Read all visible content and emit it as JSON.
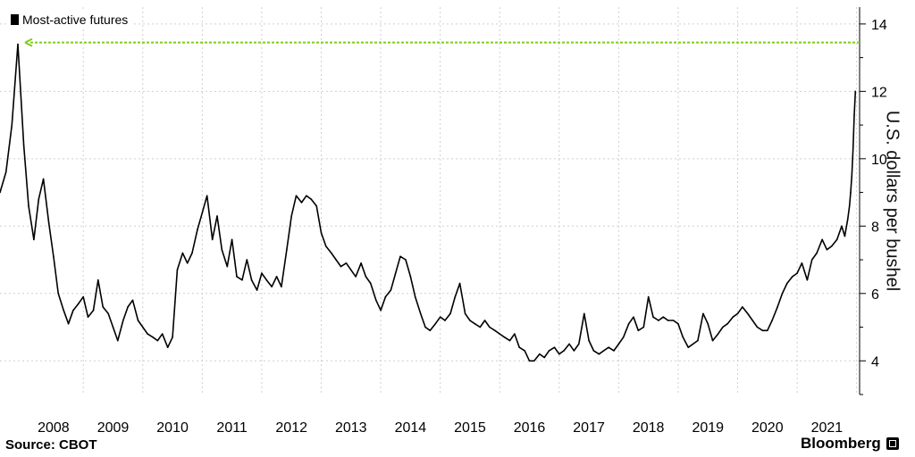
{
  "source": "Source: CBOT",
  "brand": "Bloomberg",
  "brand_icon": "bloomberg-terminal-icon",
  "colors": {
    "line": "#000000",
    "reference_line": "#7ccf12",
    "grid": "#cfcfcf",
    "axis": "#000000"
  },
  "chart_data": {
    "type": "line",
    "title": "",
    "xlabel": "",
    "ylabel": "U.S. dollars per bushel",
    "legend_position": "top-left",
    "ylim": [
      3,
      14.5
    ],
    "yticks": [
      4,
      6,
      8,
      10,
      12,
      14
    ],
    "xlim": [
      2007.6,
      2022.05
    ],
    "x_tick_labels": [
      "2008",
      "2009",
      "2010",
      "2011",
      "2012",
      "2013",
      "2014",
      "2015",
      "2016",
      "2017",
      "2018",
      "2019",
      "2020",
      "2021"
    ],
    "grid": true,
    "reference_line": {
      "y": 13.45,
      "style": "dashed",
      "arrow": "left"
    },
    "series": [
      {
        "name": "Most-active futures",
        "points": [
          [
            2007.6,
            9.0
          ],
          [
            2007.7,
            9.6
          ],
          [
            2007.8,
            11.0
          ],
          [
            2007.9,
            13.4
          ],
          [
            2008.0,
            10.4
          ],
          [
            2008.08,
            8.6
          ],
          [
            2008.17,
            7.6
          ],
          [
            2008.25,
            8.8
          ],
          [
            2008.33,
            9.4
          ],
          [
            2008.42,
            8.1
          ],
          [
            2008.5,
            7.1
          ],
          [
            2008.58,
            6.0
          ],
          [
            2008.67,
            5.5
          ],
          [
            2008.75,
            5.1
          ],
          [
            2008.83,
            5.5
          ],
          [
            2008.92,
            5.7
          ],
          [
            2009.0,
            5.9
          ],
          [
            2009.08,
            5.3
          ],
          [
            2009.17,
            5.5
          ],
          [
            2009.25,
            6.4
          ],
          [
            2009.33,
            5.6
          ],
          [
            2009.42,
            5.4
          ],
          [
            2009.5,
            5.0
          ],
          [
            2009.58,
            4.6
          ],
          [
            2009.67,
            5.2
          ],
          [
            2009.75,
            5.6
          ],
          [
            2009.83,
            5.8
          ],
          [
            2009.92,
            5.2
          ],
          [
            2010.0,
            5.0
          ],
          [
            2010.08,
            4.8
          ],
          [
            2010.17,
            4.7
          ],
          [
            2010.25,
            4.6
          ],
          [
            2010.33,
            4.8
          ],
          [
            2010.42,
            4.4
          ],
          [
            2010.5,
            4.7
          ],
          [
            2010.58,
            6.7
          ],
          [
            2010.67,
            7.2
          ],
          [
            2010.75,
            6.9
          ],
          [
            2010.83,
            7.2
          ],
          [
            2010.92,
            7.9
          ],
          [
            2011.0,
            8.4
          ],
          [
            2011.08,
            8.9
          ],
          [
            2011.17,
            7.6
          ],
          [
            2011.25,
            8.3
          ],
          [
            2011.33,
            7.3
          ],
          [
            2011.42,
            6.8
          ],
          [
            2011.5,
            7.6
          ],
          [
            2011.58,
            6.5
          ],
          [
            2011.67,
            6.4
          ],
          [
            2011.75,
            7.0
          ],
          [
            2011.83,
            6.4
          ],
          [
            2011.92,
            6.1
          ],
          [
            2012.0,
            6.6
          ],
          [
            2012.08,
            6.4
          ],
          [
            2012.17,
            6.2
          ],
          [
            2012.25,
            6.5
          ],
          [
            2012.33,
            6.2
          ],
          [
            2012.42,
            7.3
          ],
          [
            2012.5,
            8.3
          ],
          [
            2012.58,
            8.9
          ],
          [
            2012.67,
            8.7
          ],
          [
            2012.75,
            8.9
          ],
          [
            2012.83,
            8.8
          ],
          [
            2012.92,
            8.6
          ],
          [
            2013.0,
            7.8
          ],
          [
            2013.08,
            7.4
          ],
          [
            2013.17,
            7.2
          ],
          [
            2013.25,
            7.0
          ],
          [
            2013.33,
            6.8
          ],
          [
            2013.42,
            6.9
          ],
          [
            2013.5,
            6.7
          ],
          [
            2013.58,
            6.5
          ],
          [
            2013.67,
            6.9
          ],
          [
            2013.75,
            6.5
          ],
          [
            2013.83,
            6.3
          ],
          [
            2013.92,
            5.8
          ],
          [
            2014.0,
            5.5
          ],
          [
            2014.08,
            5.9
          ],
          [
            2014.17,
            6.1
          ],
          [
            2014.25,
            6.6
          ],
          [
            2014.33,
            7.1
          ],
          [
            2014.42,
            7.0
          ],
          [
            2014.5,
            6.5
          ],
          [
            2014.58,
            5.9
          ],
          [
            2014.67,
            5.4
          ],
          [
            2014.75,
            5.0
          ],
          [
            2014.83,
            4.9
          ],
          [
            2014.92,
            5.1
          ],
          [
            2015.0,
            5.3
          ],
          [
            2015.08,
            5.2
          ],
          [
            2015.17,
            5.4
          ],
          [
            2015.25,
            5.9
          ],
          [
            2015.33,
            6.3
          ],
          [
            2015.42,
            5.4
          ],
          [
            2015.5,
            5.2
          ],
          [
            2015.58,
            5.1
          ],
          [
            2015.67,
            5.0
          ],
          [
            2015.75,
            5.2
          ],
          [
            2015.83,
            5.0
          ],
          [
            2015.92,
            4.9
          ],
          [
            2016.0,
            4.8
          ],
          [
            2016.08,
            4.7
          ],
          [
            2016.17,
            4.6
          ],
          [
            2016.25,
            4.8
          ],
          [
            2016.33,
            4.4
          ],
          [
            2016.42,
            4.3
          ],
          [
            2016.5,
            4.0
          ],
          [
            2016.58,
            4.0
          ],
          [
            2016.67,
            4.2
          ],
          [
            2016.75,
            4.1
          ],
          [
            2016.83,
            4.3
          ],
          [
            2016.92,
            4.4
          ],
          [
            2017.0,
            4.2
          ],
          [
            2017.08,
            4.3
          ],
          [
            2017.17,
            4.5
          ],
          [
            2017.25,
            4.3
          ],
          [
            2017.33,
            4.5
          ],
          [
            2017.42,
            5.4
          ],
          [
            2017.5,
            4.6
          ],
          [
            2017.58,
            4.3
          ],
          [
            2017.67,
            4.2
          ],
          [
            2017.75,
            4.3
          ],
          [
            2017.83,
            4.4
          ],
          [
            2017.92,
            4.3
          ],
          [
            2018.0,
            4.5
          ],
          [
            2018.08,
            4.7
          ],
          [
            2018.17,
            5.1
          ],
          [
            2018.25,
            5.3
          ],
          [
            2018.33,
            4.9
          ],
          [
            2018.42,
            5.0
          ],
          [
            2018.5,
            5.9
          ],
          [
            2018.58,
            5.3
          ],
          [
            2018.67,
            5.2
          ],
          [
            2018.75,
            5.3
          ],
          [
            2018.83,
            5.2
          ],
          [
            2018.92,
            5.2
          ],
          [
            2019.0,
            5.1
          ],
          [
            2019.08,
            4.7
          ],
          [
            2019.17,
            4.4
          ],
          [
            2019.25,
            4.5
          ],
          [
            2019.33,
            4.6
          ],
          [
            2019.42,
            5.4
          ],
          [
            2019.5,
            5.1
          ],
          [
            2019.58,
            4.6
          ],
          [
            2019.67,
            4.8
          ],
          [
            2019.75,
            5.0
          ],
          [
            2019.83,
            5.1
          ],
          [
            2019.92,
            5.3
          ],
          [
            2020.0,
            5.4
          ],
          [
            2020.08,
            5.6
          ],
          [
            2020.17,
            5.4
          ],
          [
            2020.25,
            5.2
          ],
          [
            2020.33,
            5.0
          ],
          [
            2020.42,
            4.9
          ],
          [
            2020.5,
            4.9
          ],
          [
            2020.58,
            5.2
          ],
          [
            2020.67,
            5.6
          ],
          [
            2020.75,
            6.0
          ],
          [
            2020.83,
            6.3
          ],
          [
            2020.92,
            6.5
          ],
          [
            2021.0,
            6.6
          ],
          [
            2021.08,
            6.9
          ],
          [
            2021.17,
            6.4
          ],
          [
            2021.25,
            7.0
          ],
          [
            2021.33,
            7.2
          ],
          [
            2021.42,
            7.6
          ],
          [
            2021.5,
            7.3
          ],
          [
            2021.58,
            7.4
          ],
          [
            2021.67,
            7.6
          ],
          [
            2021.75,
            8.0
          ],
          [
            2021.8,
            7.7
          ],
          [
            2021.85,
            8.2
          ],
          [
            2021.88,
            8.6
          ],
          [
            2021.9,
            9.0
          ],
          [
            2021.92,
            9.5
          ],
          [
            2021.94,
            10.3
          ],
          [
            2021.96,
            11.3
          ],
          [
            2021.98,
            12.0
          ]
        ]
      }
    ]
  }
}
